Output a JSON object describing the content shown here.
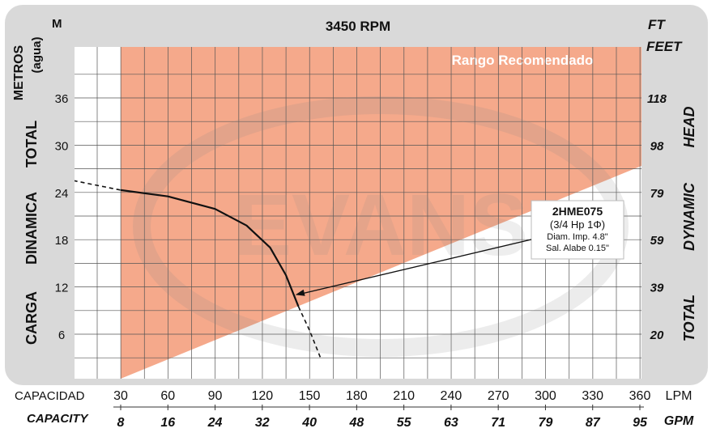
{
  "chart_data": {
    "type": "line",
    "title": "3450 RPM",
    "left_unit": "M",
    "right_unit_short": "FT",
    "right_unit_long": "FEET",
    "ylabel_left_top": "METROS",
    "ylabel_left_top_sub": "(agua)",
    "ylabel_left_words": [
      "CARGA",
      "DINAMICA",
      "TOTAL"
    ],
    "ylabel_right_words": [
      "TOTAL",
      "DYNAMIC",
      "HEAD"
    ],
    "x_lpm_label": "CAPACIDAD",
    "x_gpm_label": "CAPACITY",
    "x_lpm_unit": "LPM",
    "x_gpm_unit": "GPM",
    "x_lpm_ticks": [
      "30",
      "60",
      "90",
      "120",
      "150",
      "180",
      "210",
      "240",
      "270",
      "300",
      "330",
      "360"
    ],
    "x_gpm_ticks": [
      "8",
      "16",
      "24",
      "32",
      "40",
      "48",
      "55",
      "63",
      "71",
      "79",
      "87",
      "95"
    ],
    "y_m_ticks": [
      "6",
      "12",
      "18",
      "24",
      "30",
      "36"
    ],
    "y_ft_ticks": [
      "20",
      "39",
      "59",
      "79",
      "98",
      "118"
    ],
    "xlim": [
      0,
      360
    ],
    "ylim": [
      0,
      41
    ],
    "grid": true,
    "recommended_range_label": "Rango Recomendado",
    "range_color": "#f5a98b",
    "watermark": "EVANS",
    "curve_color": "#111111",
    "series": [
      {
        "name": "2HME075",
        "solid": [
          [
            30,
            24.3
          ],
          [
            60,
            23.5
          ],
          [
            90,
            21.9
          ],
          [
            110,
            19.8
          ],
          [
            125,
            17.0
          ],
          [
            135,
            13.5
          ],
          [
            140,
            11.0
          ],
          [
            143,
            9.5
          ]
        ],
        "dashed_start": [
          [
            0,
            25.5
          ],
          [
            30,
            24.3
          ]
        ],
        "dashed_end": [
          [
            143,
            9.5
          ],
          [
            150,
            6.5
          ],
          [
            157,
            3.0
          ]
        ]
      }
    ],
    "annotation": {
      "lines": [
        "2HME075",
        "(3/4 Hp 1Φ)",
        "Diam. Imp. 4.8\"",
        "Sal. Alabe 0.15\""
      ],
      "arrow_to": [
        140,
        11.0
      ]
    }
  }
}
